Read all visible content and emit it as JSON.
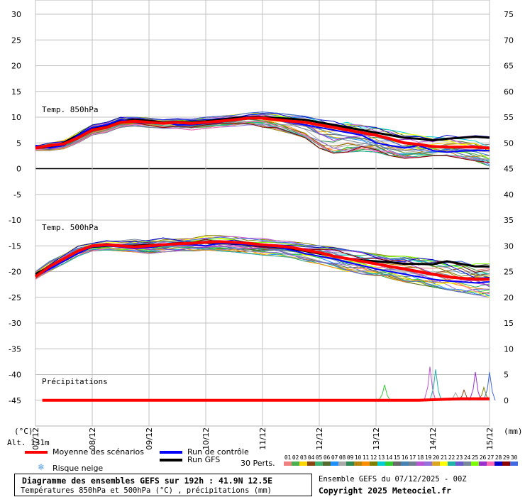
{
  "chart_data": {
    "type": "line",
    "title": "Diagramme des ensembles GEFS sur 192h : 41.9N 12.5E",
    "subtitle": "Températures 850hPa et 500hPa (°C) , précipitations (mm)",
    "left_axis_unit": "(°C)",
    "right_axis_unit": "(mm)",
    "altitude_label": "Alt. 131m",
    "left_ylim": [
      -50,
      30
    ],
    "left_ticks": [
      30,
      25,
      20,
      15,
      10,
      5,
      0,
      -5,
      -10,
      -15,
      -20,
      -25,
      -30,
      -35,
      -40,
      -45
    ],
    "right_ticks": [
      75,
      70,
      65,
      60,
      55,
      50,
      45,
      40,
      35,
      30,
      25,
      20,
      15,
      10,
      5,
      0
    ],
    "x_ticks": [
      "07/12",
      "08/12",
      "09/12",
      "10/12",
      "11/12",
      "12/12",
      "13/12",
      "14/12",
      "15/12"
    ],
    "grid": true,
    "temp850": {
      "label": "Temp. 850hPa",
      "x_days": [
        0,
        0.25,
        0.5,
        0.75,
        1,
        1.25,
        1.5,
        1.75,
        2,
        2.25,
        2.5,
        2.75,
        3,
        3.25,
        3.5,
        3.75,
        4,
        4.25,
        4.5,
        4.75,
        5,
        5.25,
        5.5,
        5.75,
        6,
        6.25,
        6.5,
        6.75,
        7,
        7.25,
        7.5,
        7.75,
        8
      ],
      "mean": [
        4,
        4.5,
        4.8,
        6,
        7.5,
        8,
        9,
        9.2,
        9,
        8.8,
        9,
        8.8,
        9,
        9.2,
        9.5,
        9.8,
        9.8,
        9.5,
        9.2,
        9,
        8.5,
        8,
        7.5,
        7,
        6.5,
        5.8,
        5,
        4.7,
        4.3,
        4.2,
        4.2,
        4.2,
        4
      ],
      "control": [
        4.5,
        4,
        4.5,
        6.5,
        8,
        8.5,
        9.5,
        9,
        8.8,
        9,
        8.5,
        8.5,
        8.8,
        9,
        9.5,
        10,
        9.8,
        9.5,
        9,
        8.5,
        8,
        7.5,
        7,
        6.5,
        5,
        4.5,
        4,
        4.5,
        3.5,
        3.2,
        3.4,
        3.5,
        3.5
      ],
      "gfs": [
        4,
        4.2,
        5,
        6.5,
        7.8,
        8.3,
        9.2,
        9.5,
        9.3,
        9,
        9.1,
        9,
        9.2,
        9.5,
        9.8,
        10,
        10,
        9.8,
        9.7,
        9.5,
        9,
        8.5,
        8,
        7.5,
        7,
        6.5,
        6,
        5.8,
        5.5,
        5.8,
        6,
        6.2,
        6
      ],
      "spread_lo": [
        3.5,
        3.5,
        3.8,
        5,
        6.5,
        7,
        8,
        8.2,
        8,
        7.8,
        7.8,
        7.5,
        7.8,
        8,
        8.2,
        8.5,
        8,
        7.5,
        6.8,
        6,
        4,
        3,
        3.2,
        3.4,
        3.2,
        2.5,
        2,
        2.2,
        2.5,
        2.5,
        2,
        1.5,
        0.5
      ],
      "spread_hi": [
        4.5,
        5,
        5.5,
        7,
        8.5,
        9,
        10,
        10,
        9.8,
        9.5,
        9.7,
        9.6,
        10,
        10.2,
        10.5,
        10.8,
        11,
        10.8,
        10.5,
        10.2,
        9.5,
        9.2,
        9,
        8.5,
        8,
        7.5,
        7,
        6.5,
        6.2,
        6.5,
        6.5,
        6.4,
        6.2
      ]
    },
    "temp500": {
      "label": "Temp. 500hPa",
      "x_days": [
        0,
        0.25,
        0.5,
        0.75,
        1,
        1.25,
        1.5,
        1.75,
        2,
        2.25,
        2.5,
        2.75,
        3,
        3.25,
        3.5,
        3.75,
        4,
        4.25,
        4.5,
        4.75,
        5,
        5.25,
        5.5,
        5.75,
        6,
        6.25,
        6.5,
        6.75,
        7,
        7.25,
        7.5,
        7.75,
        8
      ],
      "mean": [
        -21,
        -19,
        -17.5,
        -16,
        -15,
        -14.8,
        -15,
        -15.2,
        -15,
        -14.8,
        -14.6,
        -14.5,
        -14.3,
        -14.2,
        -14.3,
        -14.5,
        -14.8,
        -15,
        -15.3,
        -15.8,
        -16.3,
        -17,
        -17.5,
        -18,
        -18.5,
        -19,
        -19.5,
        -20,
        -20.5,
        -21,
        -21.3,
        -21.5,
        -21.5
      ],
      "control": [
        -21,
        -19.5,
        -18,
        -16.5,
        -15.2,
        -15,
        -15.2,
        -15.5,
        -15.3,
        -15,
        -14.8,
        -14.8,
        -15,
        -14.5,
        -14.6,
        -14.8,
        -15,
        -15.2,
        -15.8,
        -16.5,
        -17,
        -17.5,
        -18.2,
        -18.8,
        -19.5,
        -20,
        -20.5,
        -21,
        -21.5,
        -21.8,
        -22,
        -22.2,
        -22
      ],
      "gfs": [
        -20.5,
        -19,
        -17.5,
        -16,
        -15.2,
        -15,
        -15,
        -15,
        -14.8,
        -14.8,
        -14.5,
        -14.5,
        -14.4,
        -14.5,
        -14.6,
        -14.8,
        -15,
        -15.2,
        -15.5,
        -16,
        -16.5,
        -17,
        -17.5,
        -17.8,
        -18,
        -18.2,
        -18.5,
        -18.5,
        -18.6,
        -18,
        -18.5,
        -19,
        -19
      ],
      "spread_lo": [
        -21.5,
        -20,
        -18.5,
        -17,
        -16,
        -15.8,
        -16,
        -16.2,
        -16.5,
        -16.2,
        -16,
        -16,
        -15.8,
        -16,
        -16.2,
        -16.5,
        -16.8,
        -17,
        -17.5,
        -18,
        -18.5,
        -19.2,
        -20,
        -20.5,
        -21,
        -21.5,
        -22,
        -22.5,
        -23,
        -23.5,
        -24,
        -24.5,
        -25
      ],
      "spread_hi": [
        -20,
        -18,
        -16.5,
        -15,
        -14.5,
        -14,
        -14,
        -13.5,
        -13.5,
        -13,
        -13,
        -13,
        -12.8,
        -13,
        -13.2,
        -13.5,
        -13.5,
        -14,
        -14.2,
        -14.5,
        -15,
        -15.3,
        -15.8,
        -16.2,
        -16.6,
        -17,
        -17,
        -17.2,
        -17.5,
        -17.8,
        -18,
        -18.2,
        -18.5
      ]
    },
    "precip": {
      "label": "Précipitations",
      "x_days": [
        0,
        0.25,
        0.5,
        0.75,
        1,
        1.25,
        1.5,
        1.75,
        2,
        2.25,
        2.5,
        2.75,
        3,
        3.25,
        3.5,
        3.75,
        4,
        4.25,
        4.5,
        4.75,
        5,
        5.25,
        5.5,
        5.75,
        6,
        6.25,
        6.5,
        6.75,
        7,
        7.25,
        7.5,
        7.75,
        8
      ],
      "mean_mm": [
        0,
        0,
        0,
        0,
        0,
        0,
        0,
        0,
        0,
        0,
        0,
        0,
        0,
        0,
        0,
        0,
        0,
        0,
        0,
        0,
        0,
        0,
        0,
        0,
        0,
        0,
        0,
        0,
        0.1,
        0.2,
        0.3,
        0.3,
        0.3
      ],
      "peaks_mm": [
        {
          "x": 6.15,
          "v": 3.0
        },
        {
          "x": 6.95,
          "v": 6.5
        },
        {
          "x": 7.05,
          "v": 6.0
        },
        {
          "x": 7.75,
          "v": 5.5
        },
        {
          "x": 8.0,
          "v": 5.5
        },
        {
          "x": 7.55,
          "v": 2.0
        },
        {
          "x": 7.4,
          "v": 1.5
        },
        {
          "x": 7.9,
          "v": 2.5
        }
      ]
    }
  },
  "legend": {
    "mean": "Moyenne des scénarios",
    "control": "Run de contrôle",
    "gfs": "Run GFS",
    "snow": "Risque neige",
    "perts": "30 Perts.",
    "mean_color": "#ff0000",
    "control_color": "#0000ff",
    "gfs_color": "#000000",
    "snow_color": "#5aa0e6"
  },
  "perturbations": {
    "labels": [
      "01",
      "02",
      "03",
      "04",
      "05",
      "06",
      "07",
      "08",
      "09",
      "10",
      "11",
      "12",
      "13",
      "14",
      "15",
      "16",
      "17",
      "18",
      "19",
      "20",
      "21",
      "22",
      "23",
      "24",
      "25",
      "26",
      "27",
      "28",
      "29",
      "30"
    ],
    "colors": [
      "#f08080",
      "#4caf50",
      "#ffd700",
      "#8b4513",
      "#3cb371",
      "#556b2f",
      "#1e90ff",
      "#a9a9a9",
      "#2e8b57",
      "#b8860b",
      "#ff8c00",
      "#808000",
      "#00ced1",
      "#32cd32",
      "#696969",
      "#4682b4",
      "#708090",
      "#ba55d3",
      "#9370db",
      "#daa520",
      "#ffff00",
      "#20b2aa",
      "#6a5acd",
      "#778899",
      "#7cfc00",
      "#9932cc",
      "#ff69b4",
      "#0000cd",
      "#8b0000",
      "#4169e1"
    ]
  },
  "footer": {
    "run_info": "Ensemble GEFS du 07/12/2025 - 00Z",
    "copyright": "Copyright 2025 Meteociel.fr"
  }
}
